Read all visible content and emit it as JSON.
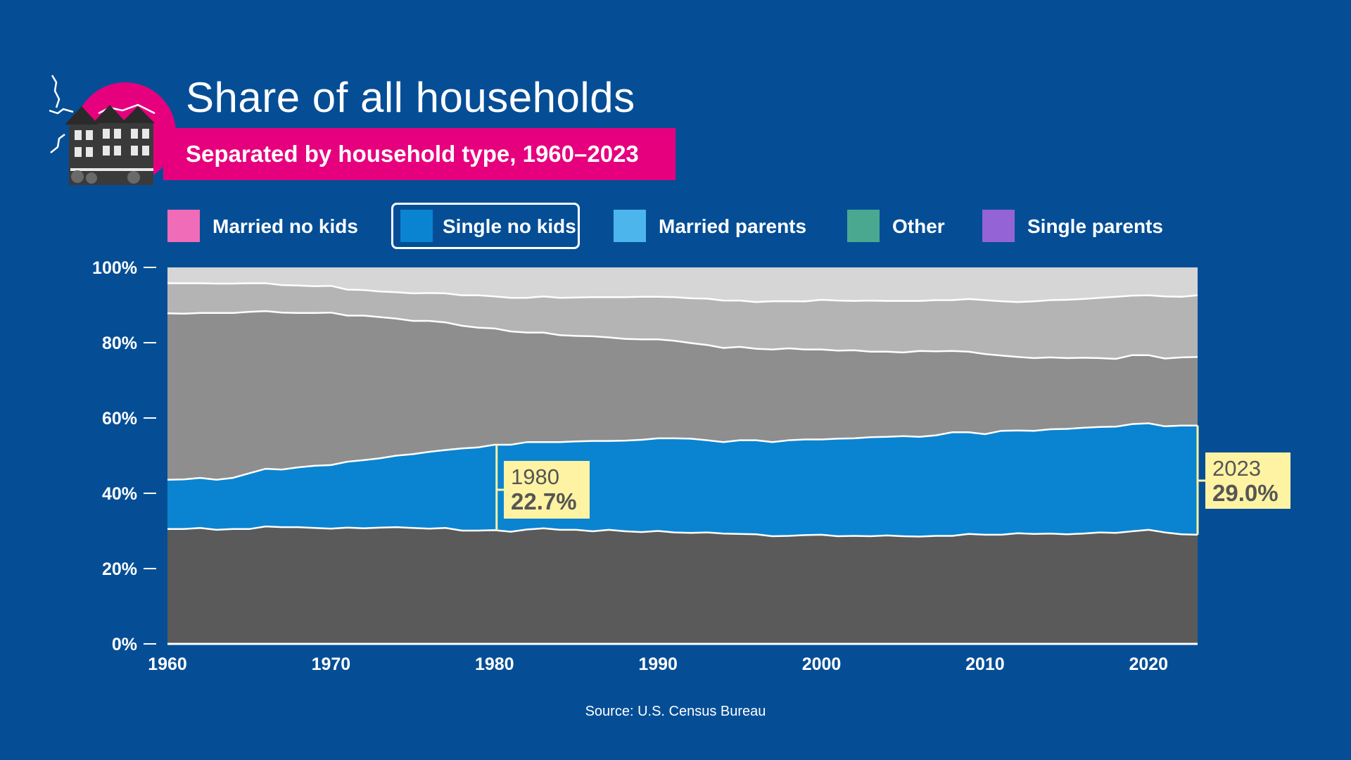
{
  "header": {
    "title": "Share of all households",
    "subtitle": "Separated by household type, 1960–2023"
  },
  "legend": [
    {
      "label": "Married no kids",
      "color": "#f06bb8",
      "selected": false
    },
    {
      "label": "Single no kids",
      "color": "#0a84d0",
      "selected": true
    },
    {
      "label": "Married parents",
      "color": "#4cb6ec",
      "selected": false
    },
    {
      "label": "Other",
      "color": "#4aa891",
      "selected": false
    },
    {
      "label": "Single parents",
      "color": "#9463d6",
      "selected": false
    }
  ],
  "callouts": [
    {
      "year": "1980",
      "value": "22.7%"
    },
    {
      "year": "2023",
      "value": "29.0%"
    }
  ],
  "source": "Source: U.S. Census Bureau",
  "chart_data": {
    "type": "area",
    "stacked": true,
    "x": [
      1960,
      1961,
      1962,
      1963,
      1964,
      1965,
      1966,
      1967,
      1968,
      1969,
      1970,
      1971,
      1972,
      1973,
      1974,
      1975,
      1976,
      1977,
      1978,
      1979,
      1980,
      1981,
      1982,
      1983,
      1984,
      1985,
      1986,
      1987,
      1988,
      1989,
      1990,
      1991,
      1992,
      1993,
      1994,
      1995,
      1996,
      1997,
      1998,
      1999,
      2000,
      2001,
      2002,
      2003,
      2004,
      2005,
      2006,
      2007,
      2008,
      2009,
      2010,
      2011,
      2012,
      2013,
      2014,
      2015,
      2016,
      2017,
      2018,
      2019,
      2020,
      2021,
      2022,
      2023
    ],
    "series": [
      {
        "name": "Married no kids",
        "color": "#5a5a5a",
        "values": [
          30.5,
          30.5,
          30.8,
          30.3,
          30.5,
          30.5,
          31.2,
          31.0,
          31.0,
          30.8,
          30.6,
          30.9,
          30.7,
          30.9,
          31.0,
          30.8,
          30.6,
          30.8,
          30.1,
          30.1,
          30.2,
          29.8,
          30.4,
          30.7,
          30.3,
          30.3,
          29.9,
          30.3,
          29.9,
          29.7,
          30.0,
          29.6,
          29.5,
          29.6,
          29.3,
          29.2,
          29.1,
          28.6,
          28.7,
          28.9,
          29.0,
          28.6,
          28.7,
          28.6,
          28.8,
          28.6,
          28.5,
          28.7,
          28.7,
          29.2,
          29.0,
          29.0,
          29.4,
          29.2,
          29.3,
          29.1,
          29.3,
          29.6,
          29.5,
          29.9,
          30.3,
          29.6,
          29.1,
          29.0
        ]
      },
      {
        "name": "Single no kids",
        "color": "#0a84d0",
        "values": [
          13.1,
          13.2,
          13.3,
          13.3,
          13.6,
          14.8,
          15.3,
          15.3,
          15.9,
          16.5,
          16.9,
          17.5,
          18.1,
          18.4,
          19.0,
          19.6,
          20.4,
          20.7,
          21.8,
          22.1,
          22.7,
          23.1,
          23.2,
          22.9,
          23.3,
          23.5,
          24.0,
          23.6,
          24.1,
          24.5,
          24.6,
          25.0,
          25.0,
          24.5,
          24.3,
          24.9,
          25.0,
          25.0,
          25.4,
          25.4,
          25.3,
          25.9,
          25.9,
          26.3,
          26.2,
          26.6,
          26.5,
          26.7,
          27.5,
          27.0,
          26.7,
          27.6,
          27.3,
          27.4,
          27.7,
          28.0,
          28.1,
          28.0,
          28.2,
          28.5,
          28.3,
          28.2,
          28.9,
          29.0
        ]
      },
      {
        "name": "Married parents",
        "color": "#8e8e8e",
        "values": [
          44.2,
          44.0,
          43.8,
          44.3,
          43.8,
          42.9,
          41.9,
          41.7,
          41.0,
          40.6,
          40.5,
          38.8,
          38.4,
          37.5,
          36.4,
          35.4,
          34.8,
          33.9,
          32.6,
          31.8,
          30.9,
          30.1,
          29.1,
          29.1,
          28.4,
          28.0,
          27.8,
          27.5,
          27.0,
          26.7,
          26.3,
          25.9,
          25.4,
          25.3,
          25.0,
          24.8,
          24.3,
          24.6,
          24.4,
          23.9,
          23.9,
          23.4,
          23.4,
          22.7,
          22.6,
          22.2,
          22.8,
          22.3,
          21.6,
          21.4,
          21.3,
          20.0,
          19.5,
          19.3,
          19.1,
          18.8,
          18.6,
          18.3,
          18.0,
          18.3,
          18.1,
          18.0,
          18.1,
          18.2
        ]
      },
      {
        "name": "Other",
        "color": "#b4b4b4",
        "values": [
          8.0,
          8.1,
          7.9,
          7.8,
          7.8,
          7.6,
          7.4,
          7.3,
          7.3,
          7.1,
          7.1,
          6.9,
          6.8,
          6.8,
          7.0,
          7.3,
          7.4,
          7.7,
          8.1,
          8.6,
          8.5,
          8.9,
          9.2,
          9.6,
          9.9,
          10.2,
          10.4,
          10.7,
          11.1,
          11.3,
          11.3,
          11.6,
          11.9,
          12.3,
          12.6,
          12.3,
          12.4,
          12.8,
          12.5,
          12.8,
          13.2,
          13.3,
          13.1,
          13.6,
          13.5,
          13.7,
          13.3,
          13.6,
          13.5,
          14.0,
          14.3,
          14.4,
          14.6,
          15.1,
          15.2,
          15.5,
          15.6,
          16.0,
          16.5,
          15.8,
          15.9,
          16.5,
          16.1,
          16.4
        ]
      },
      {
        "name": "Single parents",
        "color": "#d6d6d6",
        "values": [
          4.2,
          4.2,
          4.2,
          4.3,
          4.3,
          4.2,
          4.2,
          4.7,
          4.8,
          5.0,
          4.9,
          5.9,
          6.0,
          6.4,
          6.6,
          6.9,
          6.8,
          6.9,
          7.4,
          7.4,
          7.7,
          8.1,
          8.1,
          7.7,
          8.1,
          8.0,
          7.9,
          7.9,
          7.9,
          7.8,
          7.8,
          7.9,
          8.2,
          8.3,
          8.8,
          8.8,
          9.2,
          9.0,
          9.0,
          9.0,
          8.6,
          8.8,
          8.9,
          8.8,
          8.9,
          8.9,
          8.9,
          8.7,
          8.7,
          8.4,
          8.7,
          9.0,
          9.2,
          9.0,
          8.7,
          8.6,
          8.4,
          8.1,
          7.8,
          7.5,
          7.4,
          7.7,
          7.8,
          7.4
        ]
      }
    ],
    "ylim": [
      0,
      100
    ],
    "yticks": [
      "0%",
      "20%",
      "40%",
      "60%",
      "80%",
      "100%"
    ],
    "ytick_values": [
      0,
      20,
      40,
      60,
      80,
      100
    ],
    "xticks": [
      "1960",
      "1970",
      "1980",
      "1990",
      "2000",
      "2010",
      "2020"
    ],
    "xtick_values": [
      1960,
      1970,
      1980,
      1990,
      2000,
      2010,
      2020
    ],
    "xlim": [
      1960,
      2023
    ],
    "highlight_series": "Single no kids",
    "annotations": [
      {
        "year": 1980,
        "text_year": "1980",
        "text_value": "22.7%"
      },
      {
        "year": 2023,
        "text_year": "2023",
        "text_value": "29.0%"
      }
    ]
  }
}
